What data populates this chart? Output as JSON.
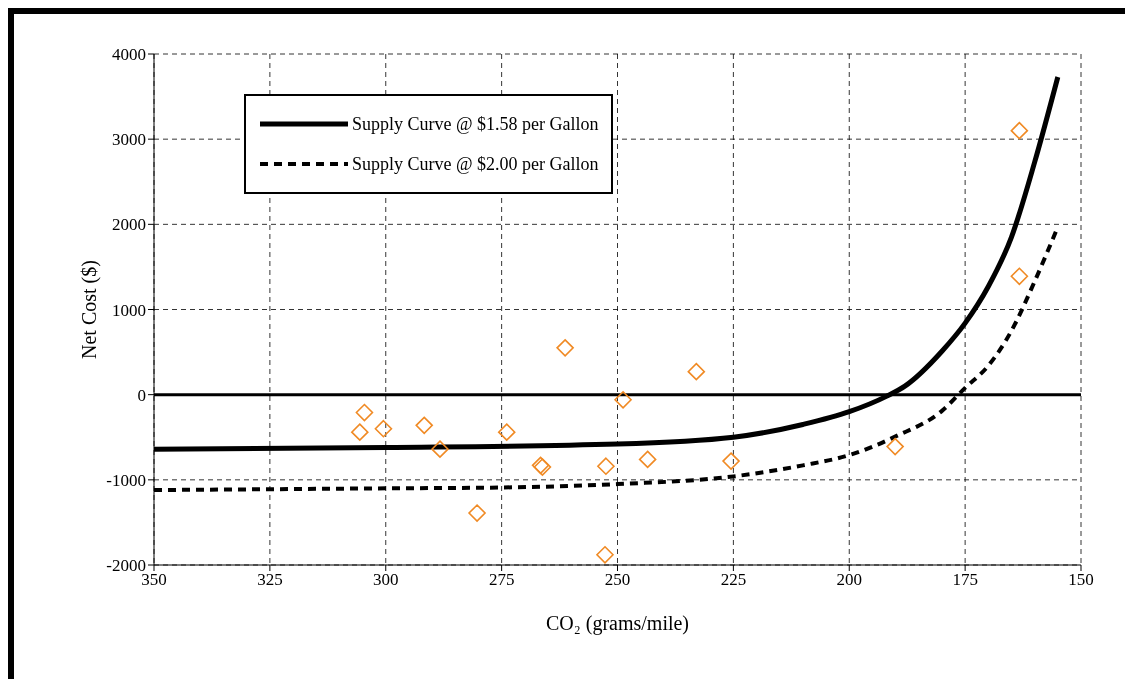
{
  "chart_data": {
    "type": "line",
    "xlabel": "CO₂ (grams/mile)",
    "ylabel": "Net Cost ($)",
    "xlim": [
      350,
      150
    ],
    "xticks": [
      350,
      325,
      300,
      275,
      250,
      225,
      200,
      175,
      150
    ],
    "ylim": [
      -2000,
      4000
    ],
    "yticks": [
      -2000,
      -1000,
      0,
      1000,
      2000,
      3000,
      4000
    ],
    "grid": true,
    "legend": "top left",
    "ref_lines": [
      {
        "axis": "y",
        "value": 0,
        "color": "#000000",
        "line_style": "solid"
      }
    ],
    "series": [
      {
        "name": "Supply Curve @ $1.58 per Gallon",
        "color": "#000000",
        "line_style": "solid",
        "marker": "none",
        "x": [
          350,
          300,
          250,
          225,
          210,
          200,
          192,
          188,
          180,
          175,
          170,
          165,
          160,
          155
        ],
        "values": [
          -640,
          -620,
          -580,
          -500,
          -350,
          -200,
          -20,
          100,
          510,
          840,
          1270,
          1850,
          2730,
          3730
        ]
      },
      {
        "name": "Supply Curve @ $2.00 per Gallon",
        "color": "#000000",
        "line_style": "dashed",
        "marker": "none",
        "x": [
          350,
          300,
          275,
          250,
          225,
          210,
          200,
          190,
          180,
          175,
          170,
          165,
          160,
          155
        ],
        "values": [
          -1120,
          -1100,
          -1090,
          -1050,
          -960,
          -830,
          -710,
          -490,
          -190,
          80,
          340,
          750,
          1330,
          1970
        ]
      },
      {
        "type": "scatter",
        "color": "#f08a24",
        "marker": "diamond",
        "x": [
          305.6,
          304.6,
          300.5,
          291.7,
          288.3,
          280.3,
          273.9,
          266.6,
          266.2,
          261.3,
          252.5,
          252.7,
          248.8,
          243.5,
          233,
          225.5,
          190.1,
          163.3,
          163.3
        ],
        "values": [
          -440,
          -210,
          -400,
          -360,
          -640,
          -1390,
          -440,
          -830,
          -850,
          550,
          -840,
          -1880,
          -60,
          -760,
          270,
          -780,
          -610,
          3100,
          1390
        ]
      }
    ]
  }
}
